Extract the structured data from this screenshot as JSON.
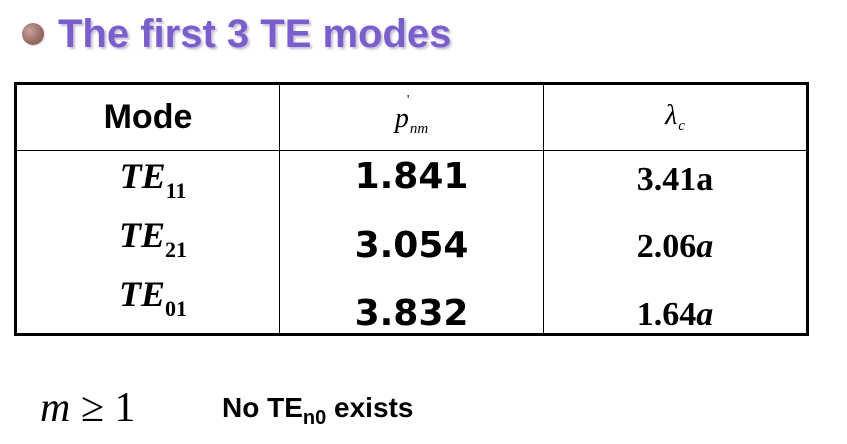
{
  "title": {
    "text": "The first 3 TE modes",
    "bullet_color": "#9a6e66",
    "text_color": "#7a5fcc"
  },
  "table": {
    "headers": {
      "mode": "Mode",
      "p_symbol": "p",
      "p_prime": "'",
      "p_subscript": "nm",
      "lambda_symbol": "λ",
      "lambda_subscript": "c"
    },
    "modes": [
      {
        "prefix": "TE",
        "subscript": "11"
      },
      {
        "prefix": "TE",
        "subscript": "21"
      },
      {
        "prefix": "TE",
        "subscript": "01"
      }
    ],
    "p_values": [
      "1.841",
      "3.054",
      "3.832"
    ],
    "lambda_values": [
      {
        "number": "3.41",
        "unit": "a",
        "unit_italic": false
      },
      {
        "number": "2.06",
        "unit": "a",
        "unit_italic": true
      },
      {
        "number": "1.64",
        "unit": "a",
        "unit_italic": true
      }
    ]
  },
  "footer": {
    "math_var": "m",
    "math_op": " ≥ ",
    "math_val": "1",
    "note_prefix": "No TE",
    "note_subscript": "n0",
    "note_suffix": " exists"
  }
}
